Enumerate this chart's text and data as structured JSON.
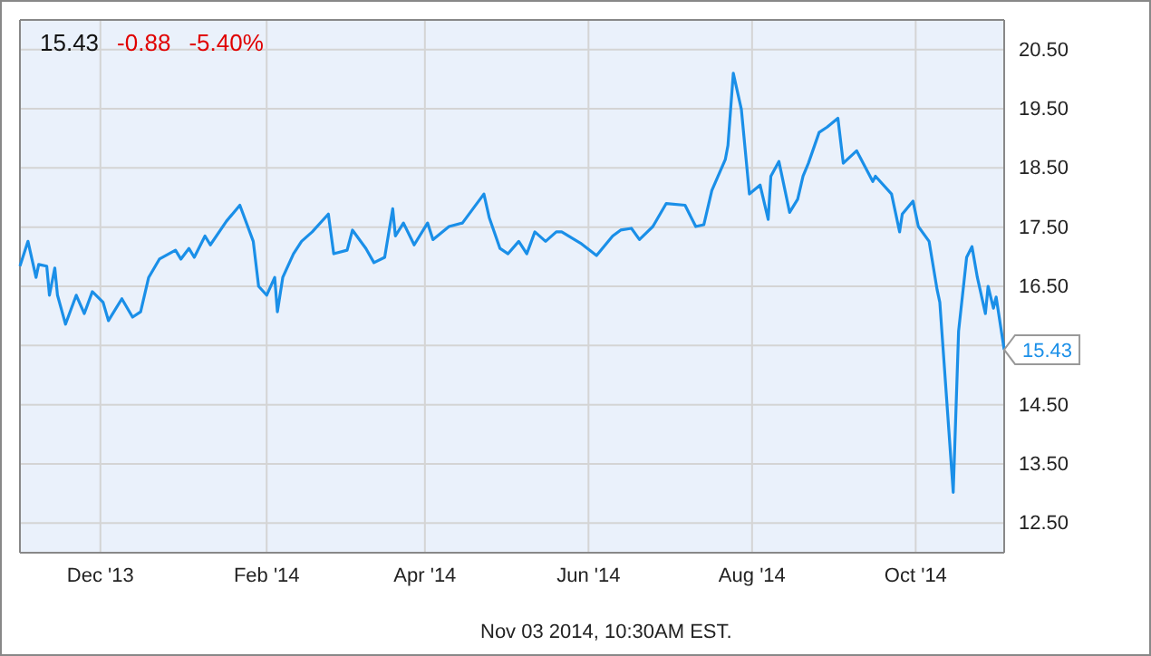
{
  "chart_data": {
    "type": "line",
    "xlim": [
      "2013-11-01",
      "2014-11-03"
    ],
    "ylim": [
      12,
      21
    ],
    "xticks": [
      {
        "value": "2013-12-01",
        "label": "Dec '13"
      },
      {
        "value": "2014-02-01",
        "label": "Feb '14"
      },
      {
        "value": "2014-04-01",
        "label": "Apr '14"
      },
      {
        "value": "2014-06-01",
        "label": "Jun '14"
      },
      {
        "value": "2014-08-01",
        "label": "Aug '14"
      },
      {
        "value": "2014-10-01",
        "label": "Oct '14"
      }
    ],
    "yticks": [
      {
        "value": 12.5,
        "label": "12.50"
      },
      {
        "value": 13.5,
        "label": "13.50"
      },
      {
        "value": 14.5,
        "label": "14.50"
      },
      {
        "value": 15.5,
        "label": null
      },
      {
        "value": 16.5,
        "label": "16.50"
      },
      {
        "value": 17.5,
        "label": "17.50"
      },
      {
        "value": 18.5,
        "label": "18.50"
      },
      {
        "value": 19.5,
        "label": "19.50"
      },
      {
        "value": 20.5,
        "label": "20.50"
      }
    ],
    "grid": true,
    "marker": "none",
    "line_style": "solid",
    "x": [
      "2013-11-01",
      "2013-11-04",
      "2013-11-07",
      "2013-11-08",
      "2013-11-11",
      "2013-11-12",
      "2013-11-14",
      "2013-11-15",
      "2013-11-18",
      "2013-11-22",
      "2013-11-25",
      "2013-11-28",
      "2013-12-02",
      "2013-12-04",
      "2013-12-09",
      "2013-12-13",
      "2013-12-16",
      "2013-12-19",
      "2013-12-23",
      "2013-12-29",
      "2013-12-31",
      "2014-01-03",
      "2014-01-05",
      "2014-01-09",
      "2014-01-11",
      "2014-01-17",
      "2014-01-22",
      "2014-01-27",
      "2014-01-29",
      "2014-02-01",
      "2014-02-04",
      "2014-02-05",
      "2014-02-07",
      "2014-02-11",
      "2014-02-14",
      "2014-02-18",
      "2014-02-24",
      "2014-02-26",
      "2014-03-03",
      "2014-03-05",
      "2014-03-10",
      "2014-03-13",
      "2014-03-17",
      "2014-03-20",
      "2014-03-21",
      "2014-03-24",
      "2014-03-28",
      "2014-04-02",
      "2014-04-04",
      "2014-04-10",
      "2014-04-15",
      "2014-04-23",
      "2014-04-25",
      "2014-04-29",
      "2014-05-02",
      "2014-05-06",
      "2014-05-09",
      "2014-05-12",
      "2014-05-16",
      "2014-05-20",
      "2014-05-22",
      "2014-05-29",
      "2014-06-04",
      "2014-06-10",
      "2014-06-13",
      "2014-06-17",
      "2014-06-20",
      "2014-06-25",
      "2014-06-30",
      "2014-07-07",
      "2014-07-11",
      "2014-07-14",
      "2014-07-17",
      "2014-07-22",
      "2014-07-23",
      "2014-07-25",
      "2014-07-28",
      "2014-07-31",
      "2014-08-04",
      "2014-08-07",
      "2014-08-08",
      "2014-08-11",
      "2014-08-15",
      "2014-08-18",
      "2014-08-20",
      "2014-08-22",
      "2014-08-26",
      "2014-08-29",
      "2014-09-02",
      "2014-09-04",
      "2014-09-09",
      "2014-09-15",
      "2014-09-16",
      "2014-09-22",
      "2014-09-25",
      "2014-09-26",
      "2014-09-30",
      "2014-10-02",
      "2014-10-06",
      "2014-10-09",
      "2014-10-10",
      "2014-10-15",
      "2014-10-17",
      "2014-10-20",
      "2014-10-22",
      "2014-10-24",
      "2014-10-27",
      "2014-10-28",
      "2014-10-30",
      "2014-10-31",
      "2014-11-03"
    ],
    "series": [
      {
        "color": "#1a8fe8",
        "values": [
          16.84,
          17.26,
          16.65,
          16.87,
          16.84,
          16.35,
          16.81,
          16.35,
          15.86,
          16.35,
          16.04,
          16.41,
          16.23,
          15.92,
          16.29,
          15.98,
          16.07,
          16.65,
          16.96,
          17.11,
          16.96,
          17.14,
          16.99,
          17.35,
          17.2,
          17.6,
          17.87,
          17.26,
          16.5,
          16.35,
          16.65,
          16.07,
          16.65,
          17.05,
          17.26,
          17.42,
          17.72,
          17.05,
          17.11,
          17.45,
          17.14,
          16.9,
          16.99,
          17.81,
          17.35,
          17.57,
          17.2,
          17.57,
          17.29,
          17.51,
          17.57,
          18.06,
          17.66,
          17.14,
          17.05,
          17.26,
          17.05,
          17.42,
          17.26,
          17.42,
          17.42,
          17.23,
          17.02,
          17.35,
          17.45,
          17.48,
          17.29,
          17.51,
          17.9,
          17.87,
          17.51,
          17.54,
          18.12,
          18.64,
          18.88,
          20.1,
          19.49,
          18.06,
          18.21,
          17.63,
          18.36,
          18.61,
          17.75,
          17.97,
          18.36,
          18.58,
          19.1,
          19.19,
          19.34,
          18.58,
          18.79,
          18.27,
          18.36,
          18.06,
          17.42,
          17.72,
          17.94,
          17.51,
          17.26,
          16.44,
          16.23,
          13.02,
          15.74,
          16.99,
          17.17,
          16.65,
          16.04,
          16.5,
          16.13,
          16.32,
          15.43
        ]
      }
    ],
    "annotations": [
      "15.43",
      "-0.88",
      "-5.40%",
      {
        "text": "15.43",
        "x": "2014-11-03",
        "y": 15.43
      },
      "Nov 03 2014, 10:30AM EST."
    ]
  }
}
